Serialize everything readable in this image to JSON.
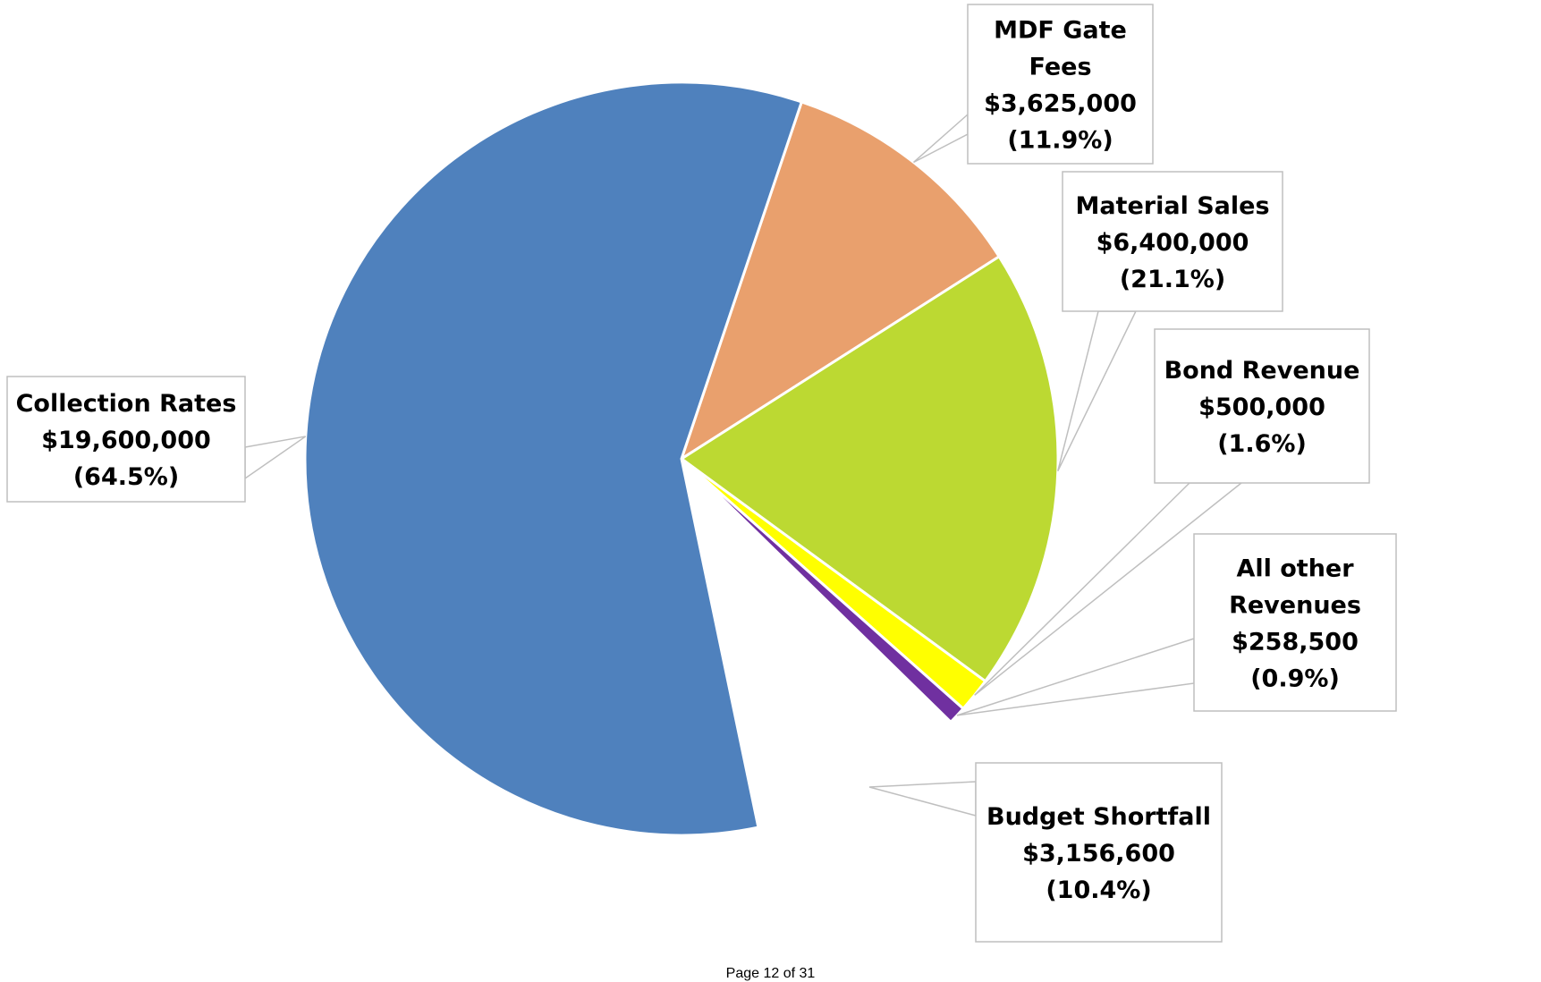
{
  "chart_data": {
    "type": "pie",
    "title": "",
    "slices": [
      {
        "label": "MDF Gate Fees",
        "label_lines": [
          "MDF Gate",
          "Fees"
        ],
        "value": 3625000,
        "value_text": "$3,625,000",
        "percent_text": "(11.9%)",
        "color": "#E9A06D"
      },
      {
        "label": "Material Sales",
        "label_lines": [
          "Material Sales"
        ],
        "value": 6400000,
        "value_text": "$6,400,000",
        "percent_text": "(21.1%)",
        "color": "#BCD932"
      },
      {
        "label": "Bond Revenue",
        "label_lines": [
          "Bond Revenue"
        ],
        "value": 500000,
        "value_text": "$500,000",
        "percent_text": "(1.6%)",
        "color": "#FFFF00"
      },
      {
        "label": "All other Revenues",
        "label_lines": [
          "All other",
          "Revenues"
        ],
        "value": 258500,
        "value_text": "$258,500",
        "percent_text": "(0.9%)",
        "color": "#7030A0"
      },
      {
        "label": "Budget Shortfall",
        "label_lines": [
          "Budget Shortfall"
        ],
        "value": 3156600,
        "value_text": "$3,156,600",
        "percent_text": "(10.4%)",
        "color": "#FFFFFF"
      },
      {
        "label": "Collection Rates",
        "label_lines": [
          "Collection Rates"
        ],
        "value": 19600000,
        "value_text": "$19,600,000",
        "percent_text": "(64.5%)",
        "color": "#4F81BD"
      }
    ],
    "legend": "none"
  },
  "footer": {
    "page_text": "Page 12 of 31"
  }
}
